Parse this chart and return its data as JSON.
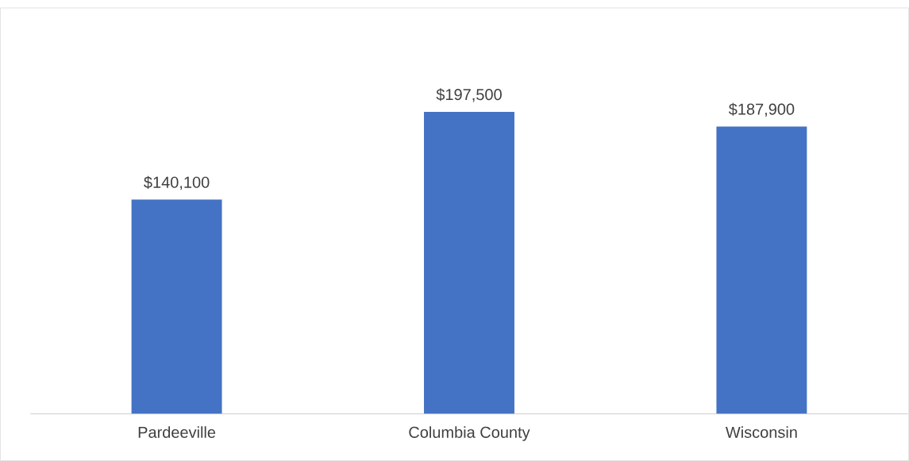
{
  "chart_data": {
    "type": "bar",
    "categories": [
      "Pardeeville",
      "Columbia County",
      "Wisconsin"
    ],
    "values": [
      140100,
      197500,
      187900
    ],
    "value_labels": [
      "$140,100",
      "$197,500",
      "$187,900"
    ],
    "color": "#4472c4"
  }
}
